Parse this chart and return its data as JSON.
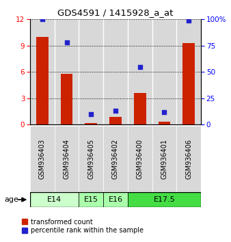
{
  "title": "GDS4591 / 1415928_a_at",
  "samples": [
    "GSM936403",
    "GSM936404",
    "GSM936405",
    "GSM936402",
    "GSM936400",
    "GSM936401",
    "GSM936406"
  ],
  "transformed_counts": [
    10.0,
    5.8,
    0.15,
    0.9,
    3.6,
    0.35,
    9.3
  ],
  "percentile_ranks": [
    100,
    78,
    10,
    13,
    55,
    12,
    99
  ],
  "age_groups": [
    {
      "label": "E14",
      "start": 0,
      "end": 2,
      "color": "#ccffcc"
    },
    {
      "label": "E15",
      "start": 2,
      "end": 3,
      "color": "#aaffaa"
    },
    {
      "label": "E16",
      "start": 3,
      "end": 4,
      "color": "#aaffaa"
    },
    {
      "label": "E17.5",
      "start": 4,
      "end": 7,
      "color": "#44dd44"
    }
  ],
  "ylim_left": [
    0,
    12
  ],
  "ylim_right": [
    0,
    100
  ],
  "yticks_left": [
    0,
    3,
    6,
    9,
    12
  ],
  "yticks_right": [
    0,
    25,
    50,
    75,
    100
  ],
  "bar_color": "#cc2200",
  "dot_color": "#2222cc",
  "bar_width": 0.5,
  "dot_size": 25,
  "col_bg_color": "#d8d8d8",
  "legend_red_label": "transformed count",
  "legend_blue_label": "percentile rank within the sample",
  "age_label": "age"
}
